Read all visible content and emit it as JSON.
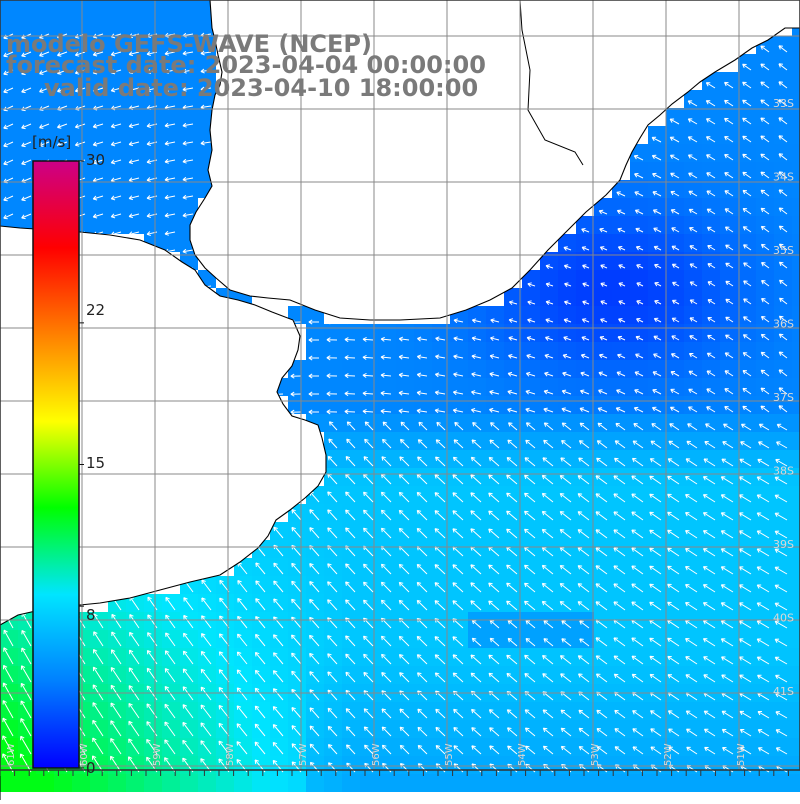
{
  "title": {
    "line1": "modelo GEFS-WAVE (NCEP)",
    "line2": "forecast date: 2023-04-04 00:00:00",
    "line3": "valid date: 2023-04-10 18:00:00"
  },
  "colorbar": {
    "unit": "[m/s]",
    "min": 0,
    "max": 30,
    "ticks": [
      {
        "value": 30,
        "label": "30"
      },
      {
        "value": 22,
        "label": "22"
      },
      {
        "value": 15,
        "label": "15"
      },
      {
        "value": 8,
        "label": "8"
      },
      {
        "value": 0,
        "label": "0"
      }
    ],
    "colors": [
      "#0000ff",
      "#0080ff",
      "#00e5ff",
      "#00ff00",
      "#ffff00",
      "#ff8000",
      "#ff0000",
      "#cc0088"
    ]
  },
  "grid": {
    "lat_labels": [
      "33S",
      "34S",
      "35S",
      "36S",
      "37S",
      "38S",
      "39S",
      "40S",
      "41S"
    ],
    "lon_labels": [
      "61W",
      "60W",
      "59W",
      "58W",
      "57W",
      "56W",
      "55W",
      "54W",
      "53W",
      "52W",
      "51W"
    ]
  },
  "map": {
    "land_color": "#ffffff",
    "coast_color": "#000000",
    "grid_color": "#888888",
    "arrow_color": "#ffffff",
    "dominant_wind_direction": "from southeast",
    "wind_speed_range_ms": [
      3,
      12
    ]
  }
}
